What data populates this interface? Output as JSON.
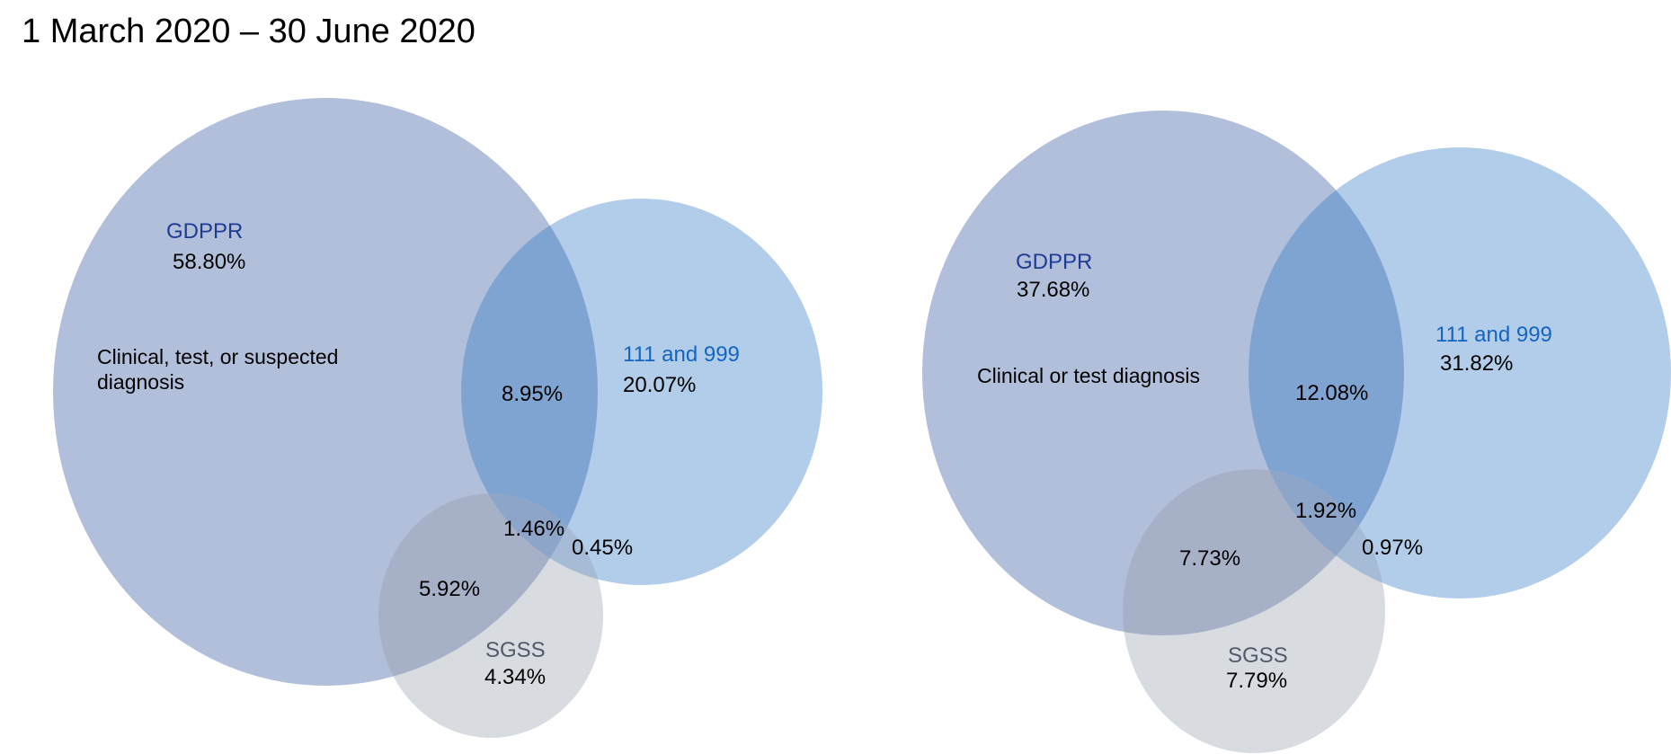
{
  "title": "1 March 2020 – 30 June 2020",
  "colors": {
    "gdppr_fill": "#b1bfdb",
    "calls_fill": "#b2cdea",
    "gdppr_calls_overlap": "#7fa4d1",
    "sgss_fill": "#d8dbe0",
    "gdppr_sgss_overlap": "#a6b0c6",
    "calls_sgss_overlap": "#a6bcd6",
    "triple_overlap": "#8da5c8",
    "gdppr_label": "#1f3c94",
    "calls_label": "#1565c0",
    "sgss_label": "#515a6a"
  },
  "left": {
    "gdppr": {
      "name": "GDPPR",
      "value": "58.80%"
    },
    "calls": {
      "name": "111 and 999",
      "value": "20.07%"
    },
    "sgss": {
      "name": "SGSS",
      "value": "4.34%"
    },
    "description_line1": "Clinical, test, or suspected",
    "description_line2": "diagnosis",
    "gdppr_calls": "8.95%",
    "all_three": "1.46%",
    "calls_sgss": "0.45%",
    "gdppr_sgss": "5.92%"
  },
  "right": {
    "gdppr": {
      "name": "GDPPR",
      "value": "37.68%"
    },
    "calls": {
      "name": "111 and 999",
      "value": "31.82%"
    },
    "sgss": {
      "name": "SGSS",
      "value": "7.79%"
    },
    "description": "Clinical or test diagnosis",
    "gdppr_calls": "12.08%",
    "all_three": "1.92%",
    "calls_sgss": "0.97%",
    "gdppr_sgss": "7.73%"
  }
}
